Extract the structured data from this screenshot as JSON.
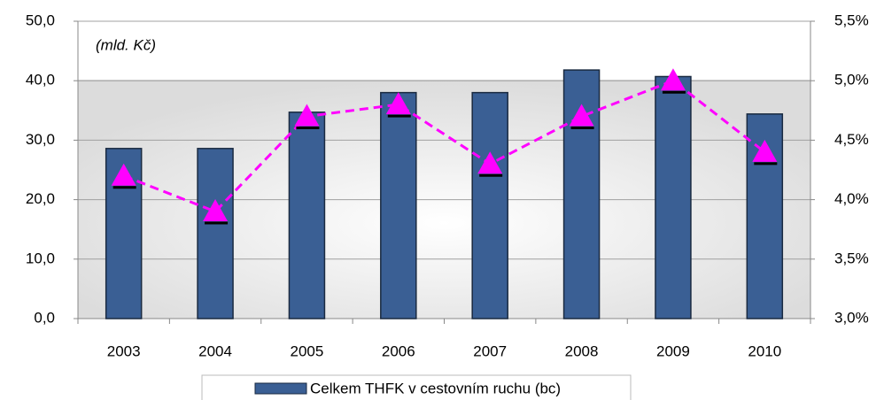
{
  "chart_data": {
    "type": "bar",
    "annotations": [
      "(mld. Kč)"
    ],
    "categories": [
      "2003",
      "2004",
      "2005",
      "2006",
      "2007",
      "2008",
      "2009",
      "2010"
    ],
    "series": [
      {
        "name": "Celkem THFK v cestovním ruchu (bc)",
        "type": "bar",
        "color": "#3a5f94",
        "values": [
          28.6,
          28.6,
          34.7,
          38.0,
          38.0,
          41.8,
          40.7,
          34.4
        ]
      },
      {
        "type": "line",
        "axis": "y2",
        "color": "#ff00ff",
        "values": [
          4.2,
          3.9,
          4.7,
          4.8,
          4.3,
          4.7,
          5.0,
          4.4
        ]
      }
    ],
    "ylim": [
      0,
      50
    ],
    "yticks": [
      {
        "value": 0,
        "label": "0,0"
      },
      {
        "value": 10,
        "label": "10,0"
      },
      {
        "value": 20,
        "label": "20,0"
      },
      {
        "value": 30,
        "label": "30,0"
      },
      {
        "value": 40,
        "label": "40,0"
      },
      {
        "value": 50,
        "label": "50,0"
      }
    ],
    "y2lim": [
      3.0,
      5.5
    ],
    "y2ticks": [
      {
        "value": 3.0,
        "label": "3,0%"
      },
      {
        "value": 3.5,
        "label": "3,5%"
      },
      {
        "value": 4.0,
        "label": "4,0%"
      },
      {
        "value": 4.5,
        "label": "4,5%"
      },
      {
        "value": 5.0,
        "label": "5,0%"
      },
      {
        "value": 5.5,
        "label": "5,5%"
      }
    ],
    "grid": true,
    "legend": "bottom"
  }
}
